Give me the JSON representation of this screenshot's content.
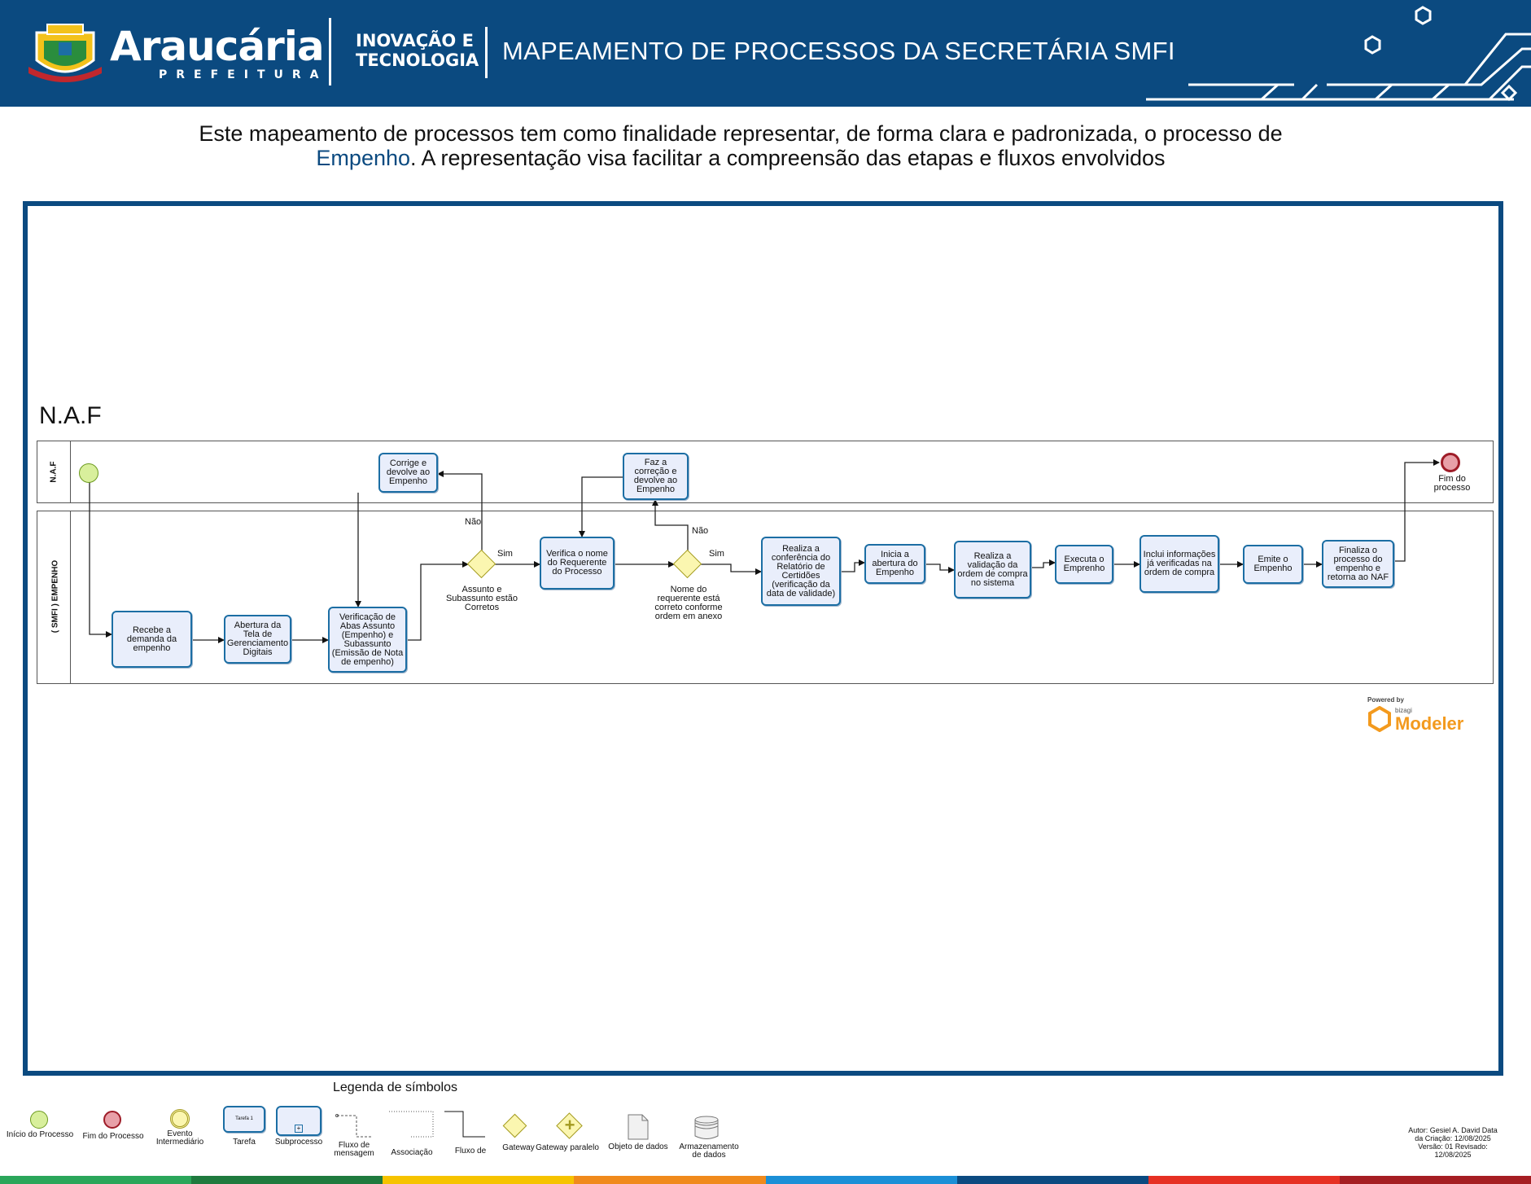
{
  "header": {
    "brand": "Araucária",
    "brand_sub": "PREFEITURA",
    "unit_line1": "INOVAÇÃO E",
    "unit_line2": "TECNOLOGIA",
    "title": "MAPEAMENTO DE PROCESSOS DA SECRETÁRIA SMFI"
  },
  "intro": {
    "part1": "Este mapeamento de processos tem como finalidade representar, de forma clara e padronizada, o processo de",
    "highlight": "Empenho",
    "part2": ". A representação visa facilitar a compreensão das etapas e fluxos envolvidos"
  },
  "diagram": {
    "pool_title": "N.A.F",
    "lanes": [
      "N.A.F",
      "( SMFI ) EMPENHO"
    ],
    "tasks": {
      "recebe": "Recebe a\ndemanda da\nempenho",
      "abertura": "Abertura da\nTela de\nGerenciamento\nDigitais",
      "verificacao": "Verificação de\nAbas Assunto\n(Empenho) e\nSubassunto\n(Emissão de Nota\nde empenho)",
      "corrige": "Corrige e\ndevolve ao\nEmpenho",
      "verifica_nome": "Verifica o nome\ndo Requerente\ndo Processo",
      "faz_correcao": "Faz a\ncorreção e\ndevolve ao\nEmpenho",
      "conferencia": "Realiza a\nconferência do\nRelatório de\nCertidões\n(verificação da\ndata de validade)",
      "inicia": "Inicia a\nabertura do\nEmpenho",
      "validacao": "Realiza a\nvalidação da\nordem de compra\nno sistema",
      "executa": "Executa o\nEmprenho",
      "inclui": "Inclui informações\njá verificadas na\nordem de compra",
      "emite": "Emite o\nEmpenho",
      "finaliza": "Finaliza o\nprocesso do\nempenho e\nretorna ao NAF"
    },
    "gateways": {
      "g1": "Assunto e\nSubassunto estão\nCorretos",
      "g2": "Nome do\nrequerente está\ncorreto conforme\nordem em anexo"
    },
    "flow_labels": {
      "g1_yes": "Sim",
      "g1_no": "Não",
      "g2_yes": "Sim",
      "g2_no": "Não"
    },
    "end_event": "Fim do\nprocesso",
    "powered_by": "Powered by",
    "bizagi": "bizagi",
    "modeler": "Modeler"
  },
  "legend": {
    "title": "Legenda de símbolos",
    "items": {
      "start": "Início do Processo",
      "end": "Fim do Processo",
      "intermediate": "Evento\nIntermediário",
      "task": "Tarefa",
      "task_inner": "Tarefa 1",
      "subprocess": "Subprocesso",
      "message_flow": "Fluxo de\nmensagem",
      "association": "Associação",
      "sequence_flow": "Fluxo de",
      "gateway": "Gateway",
      "parallel_gateway": "Gateway paralelo",
      "data_object": "Objeto de dados",
      "data_store": "Armazenamento\nde dados"
    }
  },
  "meta": "Autor: Gesiel A. David Data\nda Criação: 12/08/2025\nVersão: 01 Revisado:\n12/08/2025",
  "colors": {
    "header_bg": "#0b4a80",
    "task_fill": "#e9eefb",
    "task_border": "#1c6ea4",
    "start_event": "#d8ef9c",
    "end_event": "#e8a0a8",
    "gateway_fill": "#fbf6b0",
    "bottom_bar": [
      "#2aa65a",
      "#1f7a3e",
      "#f6c300",
      "#f08a1c",
      "#1b8fd6",
      "#0b4a80",
      "#e63023",
      "#a51e22"
    ]
  }
}
